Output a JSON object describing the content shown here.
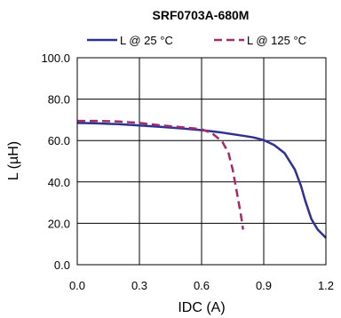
{
  "chart_data": {
    "type": "line",
    "title": "SRF0703A-680M",
    "xlabel": "IDC (A)",
    "ylabel": "L (µH)",
    "xlim": [
      0.0,
      1.2
    ],
    "ylim": [
      0.0,
      100.0
    ],
    "x_ticks": [
      "0.0",
      "0.3",
      "0.6",
      "0.9",
      "1.2"
    ],
    "y_ticks": [
      "0.0",
      "20.0",
      "40.0",
      "60.0",
      "80.0",
      "100.0"
    ],
    "grid": true,
    "legend_position": "top",
    "series": [
      {
        "name": "L @ 25 °C",
        "color": "#2e3192",
        "style": "solid",
        "x": [
          0.0,
          0.1,
          0.2,
          0.3,
          0.4,
          0.5,
          0.6,
          0.7,
          0.8,
          0.85,
          0.9,
          0.95,
          1.0,
          1.05,
          1.08,
          1.1,
          1.13,
          1.16,
          1.2
        ],
        "y": [
          68.5,
          68.3,
          67.9,
          67.3,
          66.6,
          65.9,
          65.0,
          63.8,
          62.3,
          61.5,
          60.2,
          57.8,
          54.0,
          46.0,
          38.0,
          31.0,
          22.0,
          17.0,
          13.0
        ]
      },
      {
        "name": "L @ 125 °C",
        "color": "#a32b6b",
        "style": "dashed",
        "x": [
          0.0,
          0.1,
          0.2,
          0.3,
          0.4,
          0.5,
          0.6,
          0.65,
          0.7,
          0.73,
          0.75,
          0.77,
          0.79,
          0.8
        ],
        "y": [
          69.5,
          69.5,
          69.2,
          68.5,
          67.4,
          66.5,
          65.5,
          63.5,
          59.5,
          54.0,
          46.0,
          35.0,
          24.0,
          17.0
        ]
      }
    ]
  }
}
